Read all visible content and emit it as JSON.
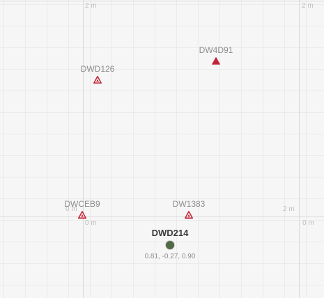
{
  "map": {
    "scale_labels": {
      "top_center": "2 m",
      "top_right": "2 m",
      "mid_right": "2 m",
      "origin_below": "0 m",
      "origin_behind": "0 m",
      "right_zero": "0 m"
    },
    "anchors": [
      {
        "id": "DW4D91",
        "color": "#c0273a"
      },
      {
        "id": "DWD126",
        "color": "#c0273a"
      },
      {
        "id": "DWCEB9",
        "color": "#c0273a"
      },
      {
        "id": "DW1383",
        "color": "#c0273a"
      }
    ],
    "tag": {
      "id": "DWD214",
      "position": "0.81, -0.27, 0.90",
      "color": "#4f6a45"
    }
  }
}
